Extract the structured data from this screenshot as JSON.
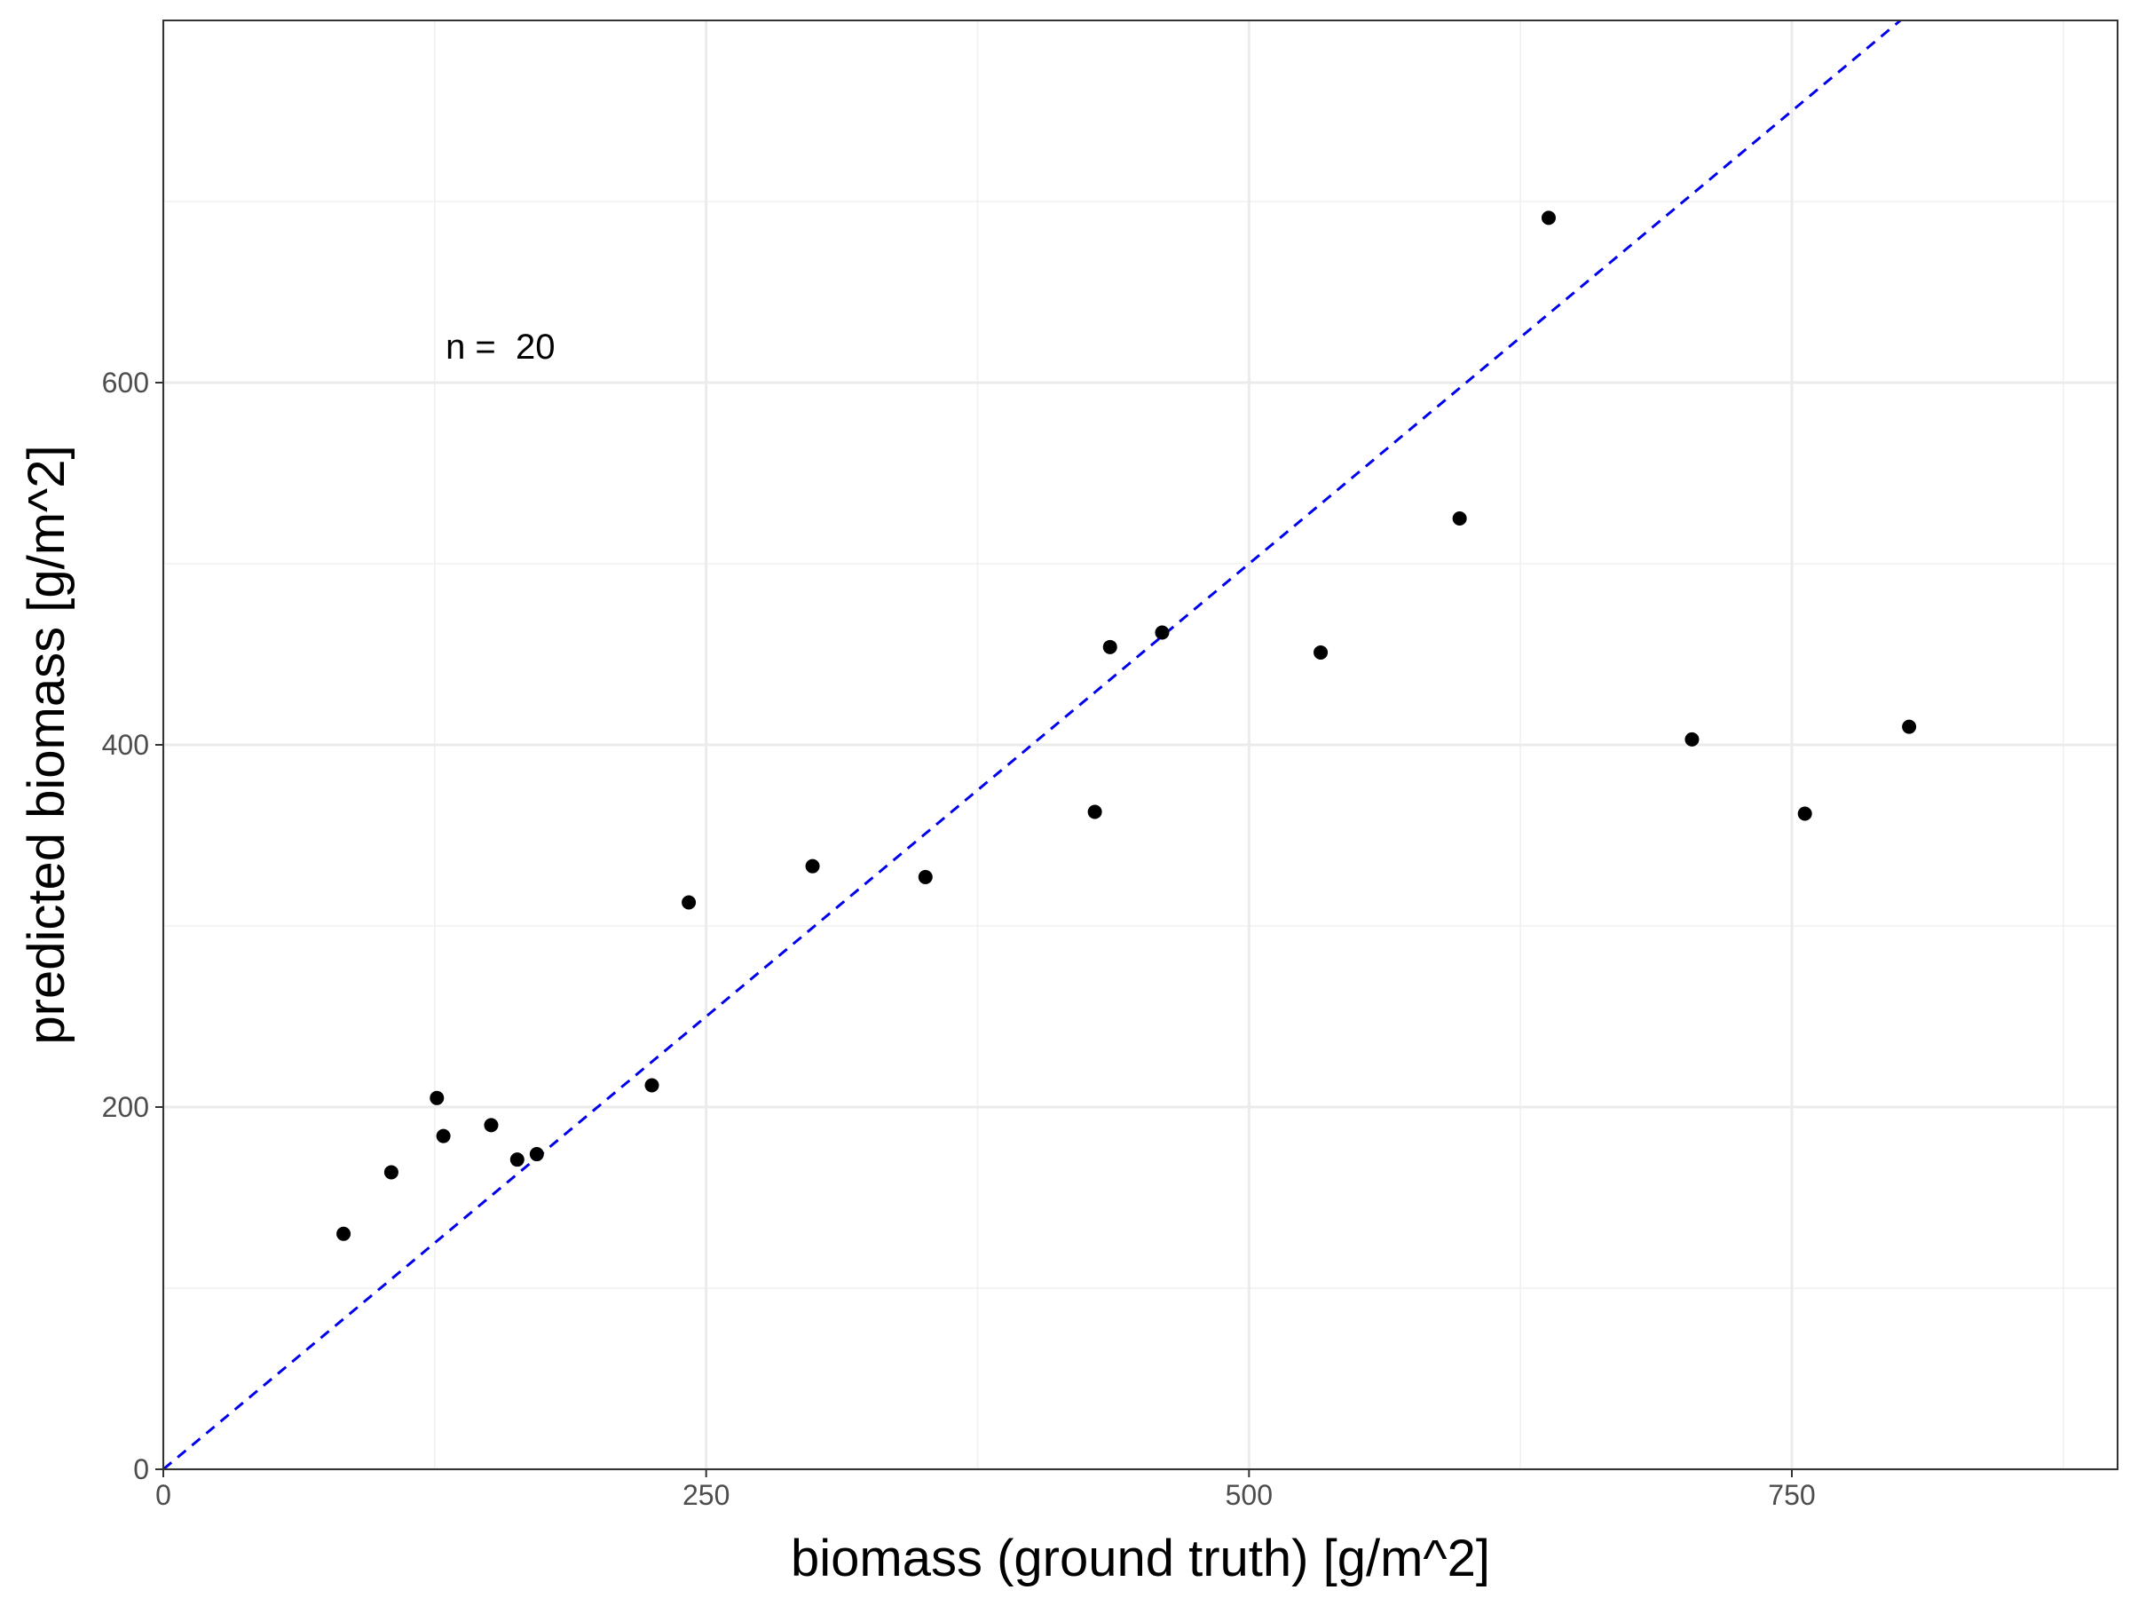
{
  "chart_data": {
    "type": "scatter",
    "xlabel": "biomass (ground truth) [g/m^2]",
    "ylabel": "predicted biomass [g/m^2]",
    "xlim": [
      0,
      900
    ],
    "ylim": [
      0,
      800
    ],
    "x_ticks": [
      0,
      250,
      500,
      750
    ],
    "x_minor_ticks": [
      125,
      375,
      625,
      875
    ],
    "y_ticks": [
      0,
      200,
      400,
      600
    ],
    "y_minor_ticks": [
      100,
      300,
      500,
      700
    ],
    "grid": true,
    "annotation": {
      "text": "n =  20",
      "x": 130,
      "y": 620
    },
    "reference_line": {
      "label": "",
      "slope": 1,
      "intercept": 0,
      "style": "dashed",
      "color": "#0000ee"
    },
    "point_color": "#000000",
    "points": [
      {
        "x": 83,
        "y": 130
      },
      {
        "x": 105,
        "y": 164
      },
      {
        "x": 126,
        "y": 205
      },
      {
        "x": 129,
        "y": 184
      },
      {
        "x": 151,
        "y": 190
      },
      {
        "x": 163,
        "y": 171
      },
      {
        "x": 172,
        "y": 174
      },
      {
        "x": 225,
        "y": 212
      },
      {
        "x": 242,
        "y": 313
      },
      {
        "x": 299,
        "y": 333
      },
      {
        "x": 351,
        "y": 327
      },
      {
        "x": 429,
        "y": 363
      },
      {
        "x": 436,
        "y": 454
      },
      {
        "x": 460,
        "y": 462
      },
      {
        "x": 533,
        "y": 451
      },
      {
        "x": 597,
        "y": 525
      },
      {
        "x": 638,
        "y": 691
      },
      {
        "x": 704,
        "y": 403
      },
      {
        "x": 756,
        "y": 362
      },
      {
        "x": 804,
        "y": 410
      }
    ]
  }
}
